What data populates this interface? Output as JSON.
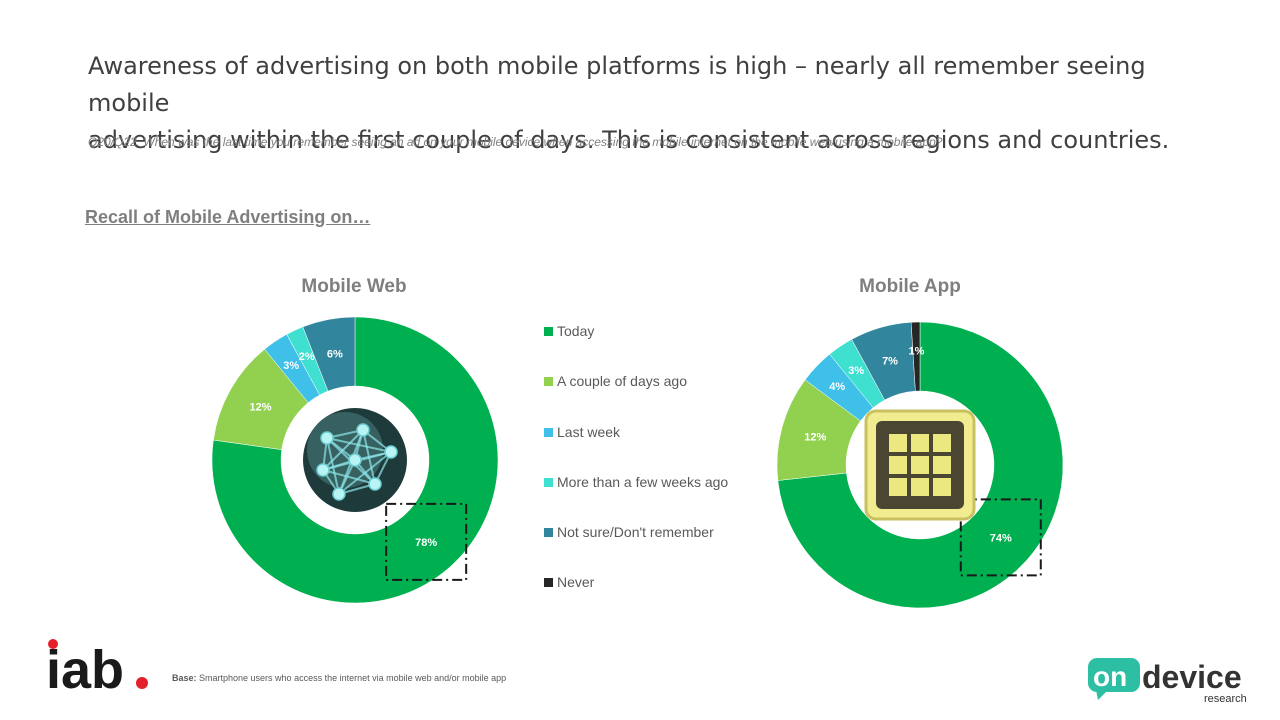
{
  "header": {
    "headline_line1": "Awareness of advertising on both mobile platforms is high – nearly all remember seeing mobile",
    "headline_line2": "advertising within the first couple of days. This is consistent across regions and countries.",
    "question": "Q20/Q22. When was the last time you remember seeing an ad on your mobile device when accessing the mobile internet on the mobile web/using a mobile app?"
  },
  "section_title": "Recall of Mobile Advertising on…",
  "colors": {
    "today": "#00b050",
    "couple_days": "#92d050",
    "last_week": "#3fc0e8",
    "few_weeks": "#40e0d0",
    "not_sure": "#31859c",
    "never": "#262626"
  },
  "chart_data": [
    {
      "type": "pie",
      "title": "Mobile Web",
      "categories": [
        "Today",
        "A couple of days ago",
        "Last week",
        "More than a few weeks ago",
        "Not sure/Don't remember"
      ],
      "values": [
        78,
        12,
        3,
        2,
        6
      ],
      "labels": [
        "78%",
        "12%",
        "3%",
        "2%",
        "6%"
      ],
      "center_icon": "globe-network-icon"
    },
    {
      "type": "pie",
      "title": "Mobile App",
      "categories": [
        "Today",
        "A couple of days ago",
        "Last week",
        "More than a few weeks ago",
        "Not sure/Don't remember",
        "Never"
      ],
      "values": [
        74,
        12,
        4,
        3,
        7,
        1
      ],
      "labels": [
        "74%",
        "12%",
        "4%",
        "3%",
        "7%",
        "1%"
      ],
      "center_icon": "app-grid-icon"
    }
  ],
  "legend": [
    {
      "label": "Today",
      "color_key": "today"
    },
    {
      "label": "A couple of days ago",
      "color_key": "couple_days"
    },
    {
      "label": "Last week",
      "color_key": "last_week"
    },
    {
      "label": "More than a few weeks ago",
      "color_key": "few_weeks"
    },
    {
      "label": "Not sure/Don't remember",
      "color_key": "not_sure"
    },
    {
      "label": "Never",
      "color_key": "never"
    }
  ],
  "footer": {
    "base_label": "Base:",
    "base_text": " Smartphone users who access the internet via mobile web and/or mobile app",
    "iab_logo_text": "iab",
    "ondevice_logo_on": "on",
    "ondevice_logo_device": "device",
    "ondevice_logo_research": "research"
  }
}
